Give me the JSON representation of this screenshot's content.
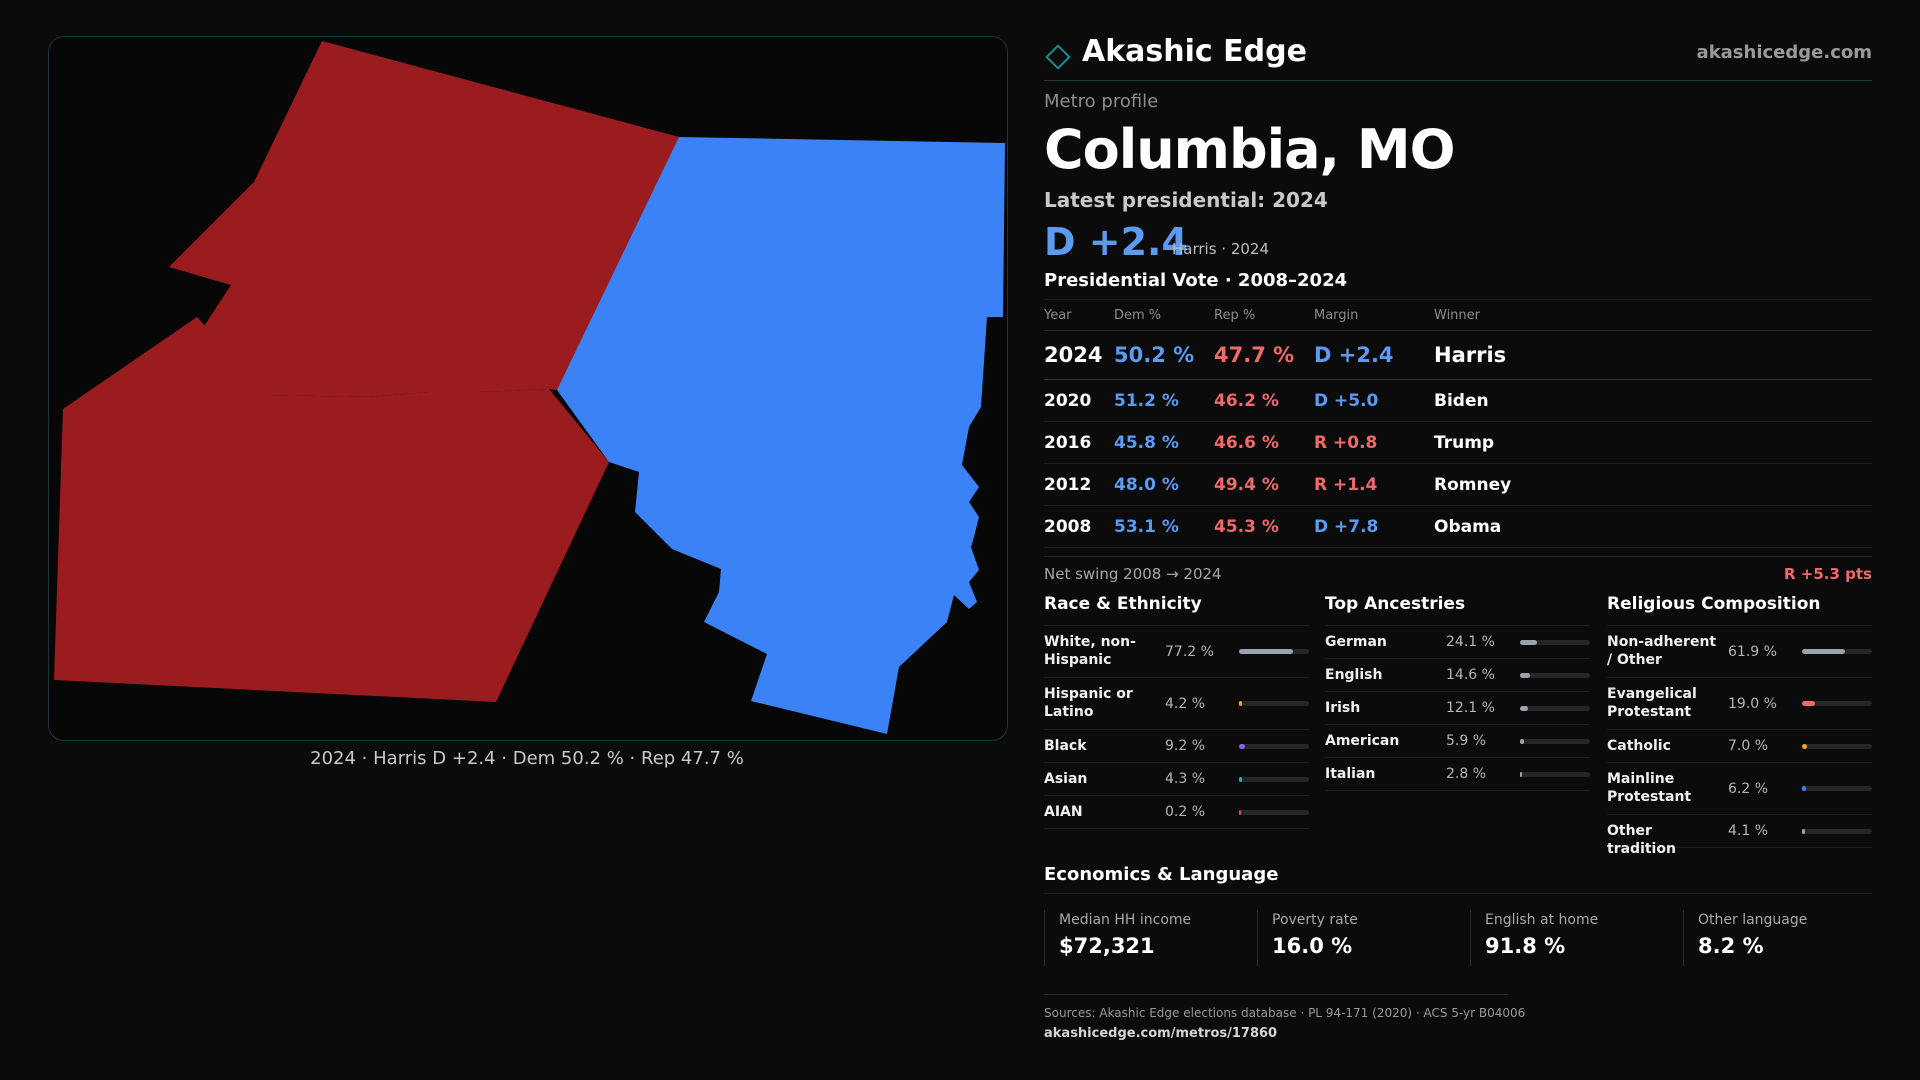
{
  "brand": {
    "name": "Akashic Edge",
    "url": "akashicedge.com"
  },
  "colors": {
    "dem": "#3b82f6",
    "rep": "#9b1c1f",
    "dem_text": "#5b9bf0",
    "rep_text": "#ef6a6a",
    "accent": "#1f5f66"
  },
  "map": {
    "caption": "2024 · Harris D +2.4 · Dem 50.2 % · Rep 47.7 %"
  },
  "profile": {
    "eyebrow": "Metro profile",
    "title": "Columbia, MO",
    "latest_label": "Latest presidential: 2024",
    "headline_margin": "D +2.4",
    "headline_sub": "Harris · 2024"
  },
  "vote_history": {
    "title": "Presidential Vote · 2008–2024",
    "headers": [
      "Year",
      "Dem %",
      "Rep %",
      "Margin",
      "Winner"
    ],
    "rows": [
      {
        "year": "2024",
        "dem": "50.2 %",
        "rep": "47.7  %",
        "margin": "D +2.4",
        "margin_party": "dem",
        "winner": "Harris"
      },
      {
        "year": "2020",
        "dem": "51.2 %",
        "rep": "46.2 %",
        "margin": "D +5.0",
        "margin_party": "dem",
        "winner": "Biden"
      },
      {
        "year": "2016",
        "dem": "45.8 %",
        "rep": "46.6 %",
        "margin": "R +0.8",
        "margin_party": "rep",
        "winner": "Trump"
      },
      {
        "year": "2012",
        "dem": "48.0 %",
        "rep": "49.4 %",
        "margin": "R +1.4",
        "margin_party": "rep",
        "winner": "Romney"
      },
      {
        "year": "2008",
        "dem": "53.1 %",
        "rep": "45.3 %",
        "margin": "D +7.8",
        "margin_party": "dem",
        "winner": "Obama"
      }
    ],
    "swing_label": "Net swing 2008 → 2024",
    "swing_value": "R +5.3 pts"
  },
  "race": {
    "title": "Race & Ethnicity",
    "items": [
      {
        "label": "White, non-Hispanic",
        "value": "77.2 %",
        "pct": 77.2,
        "color": "#9aa3ad"
      },
      {
        "label": "Hispanic or Latino",
        "value": "4.2 %",
        "pct": 4.2,
        "color": "#f5a524"
      },
      {
        "label": "Black",
        "value": "9.2 %",
        "pct": 9.2,
        "color": "#8b5cf6"
      },
      {
        "label": "Asian",
        "value": "4.3 %",
        "pct": 4.3,
        "color": "#14b8a6"
      },
      {
        "label": "AIAN",
        "value": "0.2 %",
        "pct": 0.2,
        "color": "#ef4444"
      }
    ]
  },
  "ancestry": {
    "title": "Top Ancestries",
    "items": [
      {
        "label": "German",
        "value": "24.1 %",
        "pct": 24.1,
        "color": "#9aa3ad"
      },
      {
        "label": "English",
        "value": "14.6 %",
        "pct": 14.6,
        "color": "#9aa3ad"
      },
      {
        "label": "Irish",
        "value": "12.1 %",
        "pct": 12.1,
        "color": "#9aa3ad"
      },
      {
        "label": "American",
        "value": "5.9 %",
        "pct": 5.9,
        "color": "#9aa3ad"
      },
      {
        "label": "Italian",
        "value": "2.8 %",
        "pct": 2.8,
        "color": "#9aa3ad"
      }
    ]
  },
  "religion": {
    "title": "Religious Composition",
    "items": [
      {
        "label": "Non-adherent / Other",
        "value": "61.9 %",
        "pct": 61.9,
        "color": "#9aa3ad"
      },
      {
        "label": "Evangelical Protestant",
        "value": "19.0 %",
        "pct": 19.0,
        "color": "#ef6a6a"
      },
      {
        "label": "Catholic",
        "value": "7.0 %",
        "pct": 7.0,
        "color": "#f5a524"
      },
      {
        "label": "Mainline Protestant",
        "value": "6.2 %",
        "pct": 6.2,
        "color": "#3b82f6"
      },
      {
        "label": "Other tradition",
        "value": "4.1 %",
        "pct": 4.1,
        "color": "#9aa3ad"
      }
    ]
  },
  "economics": {
    "title": "Economics & Language",
    "cells": [
      {
        "label": "Median HH income",
        "value": "$72,321"
      },
      {
        "label": "Poverty rate",
        "value": "16.0 %"
      },
      {
        "label": "English at home",
        "value": "91.8 %"
      },
      {
        "label": "Other language",
        "value": "8.2 %"
      }
    ]
  },
  "sources": {
    "text": "Sources: Akashic Edge elections database · PL 94-171 (2020) · ACS 5-yr B04006",
    "url": "akashicedge.com/metros/17860"
  }
}
